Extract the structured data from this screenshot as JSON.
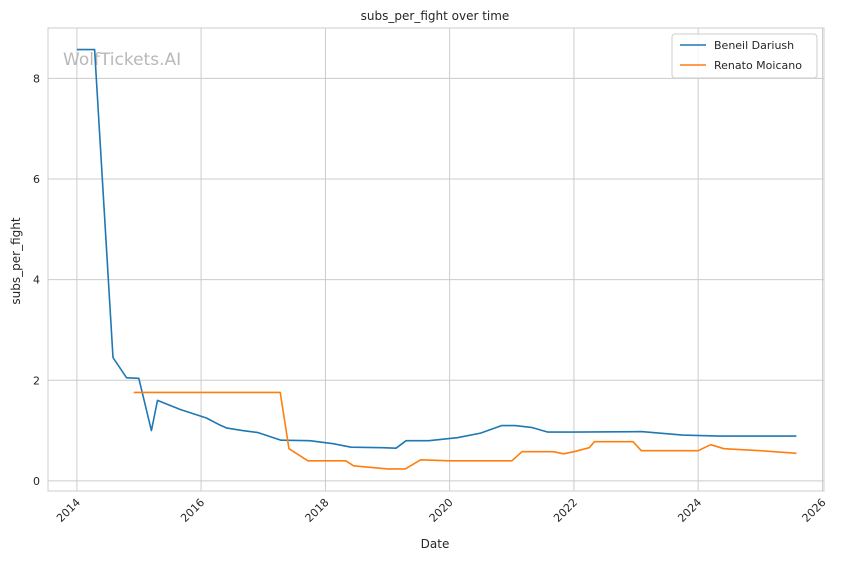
{
  "chart_data": {
    "type": "line",
    "title": "subs_per_fight over time",
    "xlabel": "Date",
    "ylabel": "subs_per_fight",
    "watermark": "WolfTickets.AI",
    "x_ticks": [
      "2014",
      "2016",
      "2018",
      "2020",
      "2022",
      "2024",
      "2026"
    ],
    "y_ticks": [
      "0",
      "2",
      "4",
      "6",
      "8"
    ],
    "xlim": [
      "2013-07-15",
      "2026-01-10"
    ],
    "ylim": [
      -0.2,
      9.0
    ],
    "grid": true,
    "legend_position": "top-right",
    "series": [
      {
        "name": "Beneil Dariush",
        "color": "#1f77b4",
        "points": [
          [
            "2014-01-01",
            8.57
          ],
          [
            "2014-04-15",
            8.57
          ],
          [
            "2014-08-01",
            2.45
          ],
          [
            "2014-10-20",
            2.05
          ],
          [
            "2014-12-31",
            2.04
          ],
          [
            "2015-03-15",
            1.0
          ],
          [
            "2015-04-20",
            1.6
          ],
          [
            "2015-09-01",
            1.42
          ],
          [
            "2016-02-01",
            1.25
          ],
          [
            "2016-04-15",
            1.12
          ],
          [
            "2016-06-01",
            1.05
          ],
          [
            "2016-09-01",
            1.0
          ],
          [
            "2016-12-01",
            0.96
          ],
          [
            "2017-04-15",
            0.81
          ],
          [
            "2017-10-01",
            0.8
          ],
          [
            "2018-02-15",
            0.74
          ],
          [
            "2018-06-01",
            0.67
          ],
          [
            "2018-12-01",
            0.66
          ],
          [
            "2019-02-20",
            0.65
          ],
          [
            "2019-04-20",
            0.8
          ],
          [
            "2019-09-01",
            0.8
          ],
          [
            "2020-02-15",
            0.86
          ],
          [
            "2020-07-01",
            0.95
          ],
          [
            "2020-11-01",
            1.1
          ],
          [
            "2021-01-20",
            1.1
          ],
          [
            "2021-05-01",
            1.06
          ],
          [
            "2021-08-01",
            0.97
          ],
          [
            "2022-01-01",
            0.97
          ],
          [
            "2023-02-01",
            0.98
          ],
          [
            "2023-10-01",
            0.91
          ],
          [
            "2024-05-01",
            0.89
          ],
          [
            "2025-02-01",
            0.89
          ],
          [
            "2025-08-01",
            0.89
          ]
        ]
      },
      {
        "name": "Renato Moicano",
        "color": "#ff7f0e",
        "points": [
          [
            "2014-12-01",
            1.76
          ],
          [
            "2017-04-10",
            1.76
          ],
          [
            "2017-06-01",
            0.64
          ],
          [
            "2017-09-20",
            0.4
          ],
          [
            "2018-01-01",
            0.4
          ],
          [
            "2018-05-01",
            0.4
          ],
          [
            "2018-06-15",
            0.3
          ],
          [
            "2019-01-01",
            0.24
          ],
          [
            "2019-04-15",
            0.24
          ],
          [
            "2019-07-15",
            0.42
          ],
          [
            "2020-01-01",
            0.4
          ],
          [
            "2020-05-01",
            0.4
          ],
          [
            "2021-01-01",
            0.4
          ],
          [
            "2021-03-01",
            0.58
          ],
          [
            "2021-09-01",
            0.58
          ],
          [
            "2021-11-01",
            0.54
          ],
          [
            "2022-01-01",
            0.58
          ],
          [
            "2022-04-01",
            0.66
          ],
          [
            "2022-05-01",
            0.78
          ],
          [
            "2022-12-15",
            0.78
          ],
          [
            "2023-02-01",
            0.6
          ],
          [
            "2024-01-01",
            0.6
          ],
          [
            "2024-03-15",
            0.72
          ],
          [
            "2024-06-01",
            0.64
          ],
          [
            "2025-01-01",
            0.6
          ],
          [
            "2025-08-01",
            0.55
          ]
        ]
      }
    ]
  }
}
